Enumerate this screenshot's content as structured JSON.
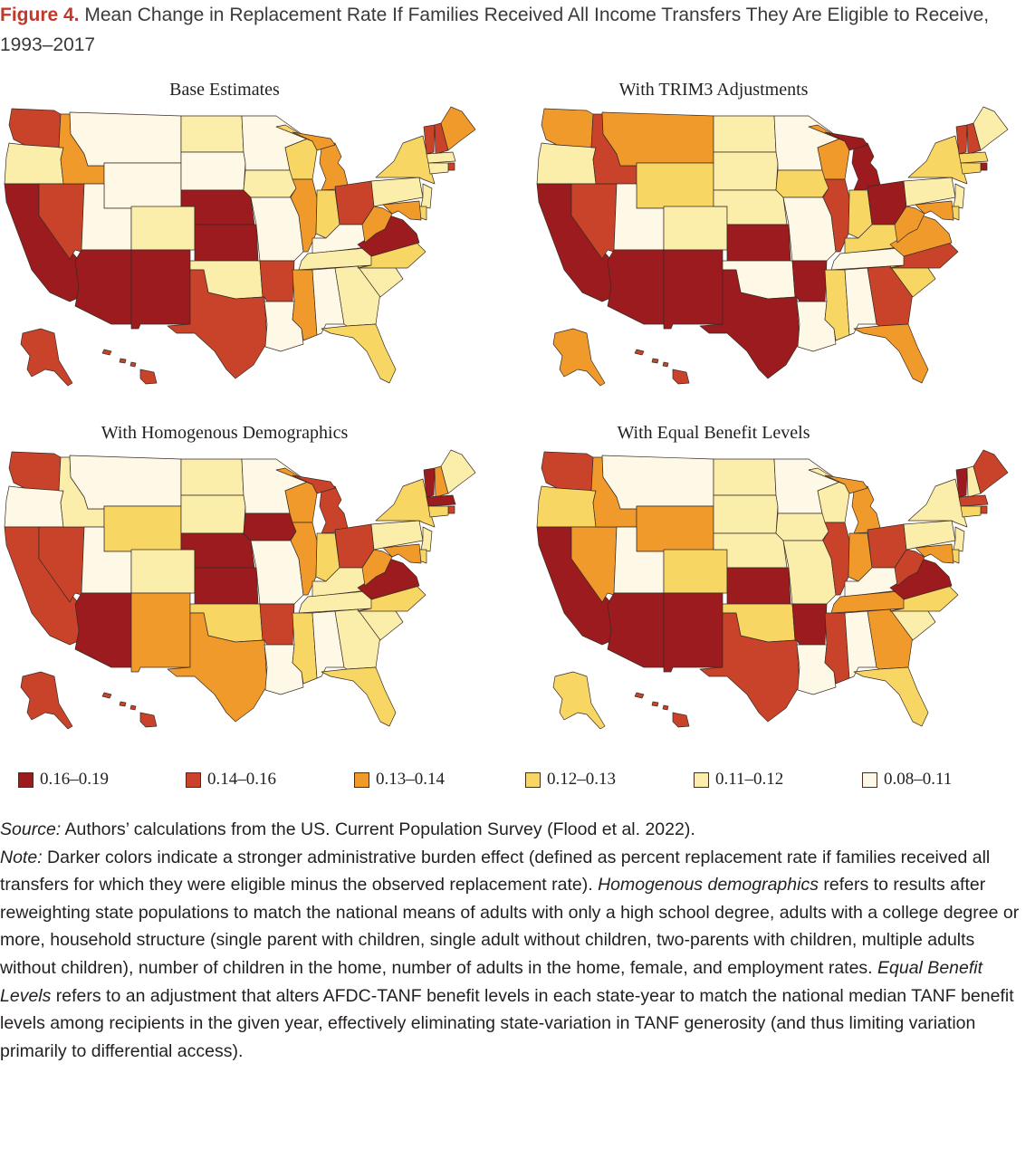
{
  "header": {
    "figure_label": "Figure 4.",
    "title": "Mean Change in Replacement Rate If Families Received All Income Transfers They Are Eligible to Receive, 1993–2017"
  },
  "legend": [
    {
      "label": "0.16–0.19",
      "color": "#9b1b1e"
    },
    {
      "label": "0.14–0.16",
      "color": "#c8432a"
    },
    {
      "label": "0.13–0.14",
      "color": "#ef9a2a"
    },
    {
      "label": "0.12–0.13",
      "color": "#f8d664"
    },
    {
      "label": "0.11–0.12",
      "color": "#fbeeaa"
    },
    {
      "label": "0.08–0.11",
      "color": "#fdf9e6"
    }
  ],
  "maps": [
    {
      "title": "Base Estimates",
      "values": {
        "WA": 1,
        "OR": 4,
        "CA": 0,
        "NV": 1,
        "ID": 2,
        "MT": 5,
        "WY": 5,
        "UT": 5,
        "AZ": 0,
        "NM": 0,
        "CO": 4,
        "ND": 4,
        "SD": 5,
        "NE": 0,
        "KS": 0,
        "OK": 4,
        "TX": 1,
        "MN": 5,
        "IA": 4,
        "MO": 5,
        "AR": 1,
        "LA": 5,
        "WI": 3,
        "IL": 2,
        "MI": 2,
        "IN": 3,
        "OH": 1,
        "KY": 5,
        "TN": 4,
        "MS": 2,
        "AL": 5,
        "GA": 4,
        "FL": 3,
        "SC": 4,
        "NC": 3,
        "VA": 0,
        "WV": 2,
        "PA": 4,
        "NY": 3,
        "VT": 1,
        "NH": 1,
        "ME": 2,
        "MA": 4,
        "CT": 4,
        "RI": 1,
        "NJ": 4,
        "DE": 3,
        "MD": 2,
        "AK": 1,
        "HI": 1
      }
    },
    {
      "title": "With TRIM3 Adjustments",
      "values": {
        "WA": 2,
        "OR": 4,
        "CA": 0,
        "NV": 1,
        "ID": 1,
        "MT": 2,
        "WY": 3,
        "UT": 5,
        "AZ": 0,
        "NM": 0,
        "CO": 4,
        "ND": 4,
        "SD": 4,
        "NE": 4,
        "KS": 0,
        "OK": 5,
        "TX": 0,
        "MN": 5,
        "IA": 3,
        "MO": 5,
        "AR": 0,
        "LA": 5,
        "WI": 2,
        "IL": 1,
        "MI": 0,
        "IN": 3,
        "OH": 0,
        "KY": 3,
        "TN": 5,
        "MS": 3,
        "AL": 5,
        "GA": 1,
        "FL": 2,
        "SC": 3,
        "NC": 1,
        "VA": 2,
        "WV": 2,
        "PA": 4,
        "NY": 3,
        "VT": 1,
        "NH": 1,
        "ME": 4,
        "MA": 3,
        "CT": 3,
        "RI": 0,
        "NJ": 4,
        "DE": 3,
        "MD": 2,
        "AK": 2,
        "HI": 1
      }
    },
    {
      "title": "With Homogenous Demographics",
      "values": {
        "WA": 1,
        "OR": 5,
        "CA": 1,
        "NV": 1,
        "ID": 4,
        "MT": 5,
        "WY": 3,
        "UT": 5,
        "AZ": 0,
        "NM": 2,
        "CO": 4,
        "ND": 4,
        "SD": 4,
        "NE": 0,
        "KS": 0,
        "OK": 3,
        "TX": 2,
        "MN": 5,
        "IA": 0,
        "MO": 5,
        "AR": 1,
        "LA": 5,
        "WI": 2,
        "IL": 2,
        "MI": 1,
        "IN": 3,
        "OH": 1,
        "KY": 4,
        "TN": 4,
        "MS": 3,
        "AL": 5,
        "GA": 4,
        "FL": 3,
        "SC": 4,
        "NC": 3,
        "VA": 0,
        "WV": 2,
        "PA": 4,
        "NY": 3,
        "VT": 0,
        "NH": 2,
        "ME": 4,
        "MA": 0,
        "CT": 3,
        "RI": 1,
        "NJ": 4,
        "DE": 3,
        "MD": 2,
        "AK": 1,
        "HI": 1
      }
    },
    {
      "title": "With Equal Benefit Levels",
      "values": {
        "WA": 1,
        "OR": 3,
        "CA": 0,
        "NV": 2,
        "ID": 2,
        "MT": 5,
        "WY": 2,
        "UT": 5,
        "AZ": 0,
        "NM": 0,
        "CO": 3,
        "ND": 4,
        "SD": 4,
        "NE": 4,
        "KS": 0,
        "OK": 3,
        "TX": 1,
        "MN": 5,
        "IA": 4,
        "MO": 4,
        "AR": 0,
        "LA": 5,
        "WI": 4,
        "IL": 1,
        "MI": 2,
        "IN": 2,
        "OH": 1,
        "KY": 5,
        "TN": 2,
        "MS": 1,
        "AL": 5,
        "GA": 2,
        "FL": 3,
        "SC": 4,
        "NC": 3,
        "VA": 0,
        "WV": 1,
        "PA": 4,
        "NY": 4,
        "VT": 0,
        "NH": 4,
        "ME": 1,
        "MA": 1,
        "CT": 3,
        "RI": 1,
        "NJ": 4,
        "DE": 3,
        "MD": 2,
        "AK": 3,
        "HI": 1
      }
    }
  ],
  "notes": {
    "source_label": "Source:",
    "source_text": " Authors’ calculations from the US. Current Population Survey (Flood et al. 2022).",
    "note_label": "Note:",
    "note_text": " Darker colors indicate a stronger administrative burden effect (defined as percent replacement rate if families received all transfers for which they were eligible minus the observed replacement rate).",
    "homog_label": "Homogenous demographics",
    "homog_text": " refers to results after reweighting state populations to match the national means of adults with only a high school degree, adults with a college degree or more, household structure (single parent with children, single adult without children, two-parents with children, multiple adults without children), number of children in the home, number of adults in the home, female, and employment rates.",
    "equal_label": "Equal Benefit Levels",
    "equal_text": " refers to an adjustment that alters AFDC-TANF benefit levels in each state-year to match the national median TANF benefit levels among recipients in the given year, effectively eliminating state-variation in TANF generosity (and thus limiting variation primarily to differential access)."
  }
}
